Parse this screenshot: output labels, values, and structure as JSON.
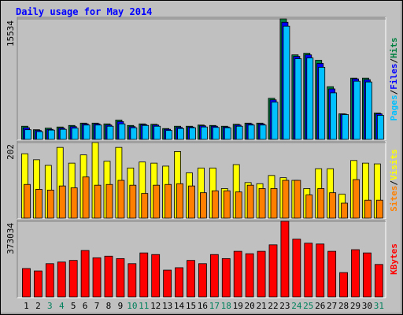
{
  "chart_data": [
    {
      "type": "bar",
      "title": "Daily usage for May 2014",
      "ylim": [
        0,
        15534
      ],
      "yticks": [
        15534
      ],
      "legend_separator": "/",
      "series": [
        {
          "name": "Hits",
          "color": "#008040",
          "values": [
            1700,
            1250,
            1450,
            1600,
            1800,
            2100,
            2100,
            2000,
            2500,
            1800,
            2000,
            1950,
            1400,
            1700,
            1700,
            1850,
            1800,
            1700,
            1950,
            2100,
            2100,
            5300,
            15534,
            10900,
            11100,
            10200,
            6800,
            3300,
            7900,
            7900,
            3400
          ]
        },
        {
          "name": "Files",
          "color": "#0000ff",
          "values": [
            1500,
            1150,
            1300,
            1450,
            1650,
            2000,
            2000,
            1850,
            2300,
            1650,
            1900,
            1850,
            1300,
            1550,
            1600,
            1750,
            1700,
            1600,
            1850,
            2000,
            2000,
            5100,
            15100,
            10700,
            10900,
            9800,
            6500,
            3250,
            7800,
            7700,
            3300
          ]
        },
        {
          "name": "Pages",
          "color": "#00c0ff",
          "values": [
            1250,
            1000,
            1200,
            1300,
            1450,
            1850,
            1850,
            1700,
            2000,
            1500,
            1800,
            1700,
            1150,
            1400,
            1500,
            1600,
            1550,
            1500,
            1700,
            1850,
            1850,
            4800,
            14600,
            10400,
            10500,
            9300,
            6000,
            3200,
            7500,
            7400,
            3100
          ]
        }
      ]
    },
    {
      "type": "bar",
      "ylim": [
        0,
        202
      ],
      "yticks": [
        202
      ],
      "legend_separator": "/",
      "series": [
        {
          "name": "Visits",
          "color": "#ffff00",
          "values": [
            172,
            156,
            141,
            189,
            147,
            169,
            202,
            152,
            189,
            134,
            150,
            147,
            139,
            178,
            121,
            134,
            134,
            79,
            143,
            95,
            92,
            114,
            108,
            101,
            79,
            132,
            132,
            64,
            154,
            147,
            145
          ]
        },
        {
          "name": "Sites",
          "color": "#ff8000",
          "values": [
            90,
            77,
            75,
            86,
            81,
            110,
            88,
            90,
            101,
            88,
            66,
            88,
            90,
            92,
            86,
            68,
            73,
            73,
            70,
            88,
            79,
            79,
            101,
            101,
            62,
            79,
            68,
            40,
            103,
            48,
            48
          ]
        }
      ]
    },
    {
      "type": "bar",
      "ylim": [
        0,
        373034
      ],
      "yticks": [
        373034
      ],
      "categories": [
        "1",
        "2",
        "3",
        "4",
        "5",
        "6",
        "7",
        "8",
        "9",
        "10",
        "11",
        "12",
        "13",
        "14",
        "15",
        "16",
        "17",
        "18",
        "19",
        "20",
        "21",
        "22",
        "23",
        "24",
        "25",
        "26",
        "27",
        "28",
        "29",
        "30",
        "31"
      ],
      "label_colors": [
        "#000000",
        "#000000",
        "#00805c",
        "#00805c",
        "#000000",
        "#000000",
        "#000000",
        "#000000",
        "#000000",
        "#00805c",
        "#00805c",
        "#000000",
        "#000000",
        "#000000",
        "#000000",
        "#000000",
        "#00805c",
        "#00805c",
        "#000000",
        "#000000",
        "#000000",
        "#000000",
        "#000000",
        "#00805c",
        "#00805c",
        "#000000",
        "#000000",
        "#000000",
        "#000000",
        "#000000",
        "#00805c"
      ],
      "series": [
        {
          "name": "KBytes",
          "color": "#ff0000",
          "values": [
            140000,
            128000,
            164000,
            172000,
            180000,
            229000,
            193000,
            201000,
            189000,
            164000,
            217000,
            209000,
            132000,
            144000,
            180000,
            164000,
            209000,
            189000,
            225000,
            213000,
            225000,
            257000,
            373034,
            285000,
            265000,
            261000,
            225000,
            120000,
            233000,
            217000,
            160000
          ]
        }
      ]
    }
  ]
}
